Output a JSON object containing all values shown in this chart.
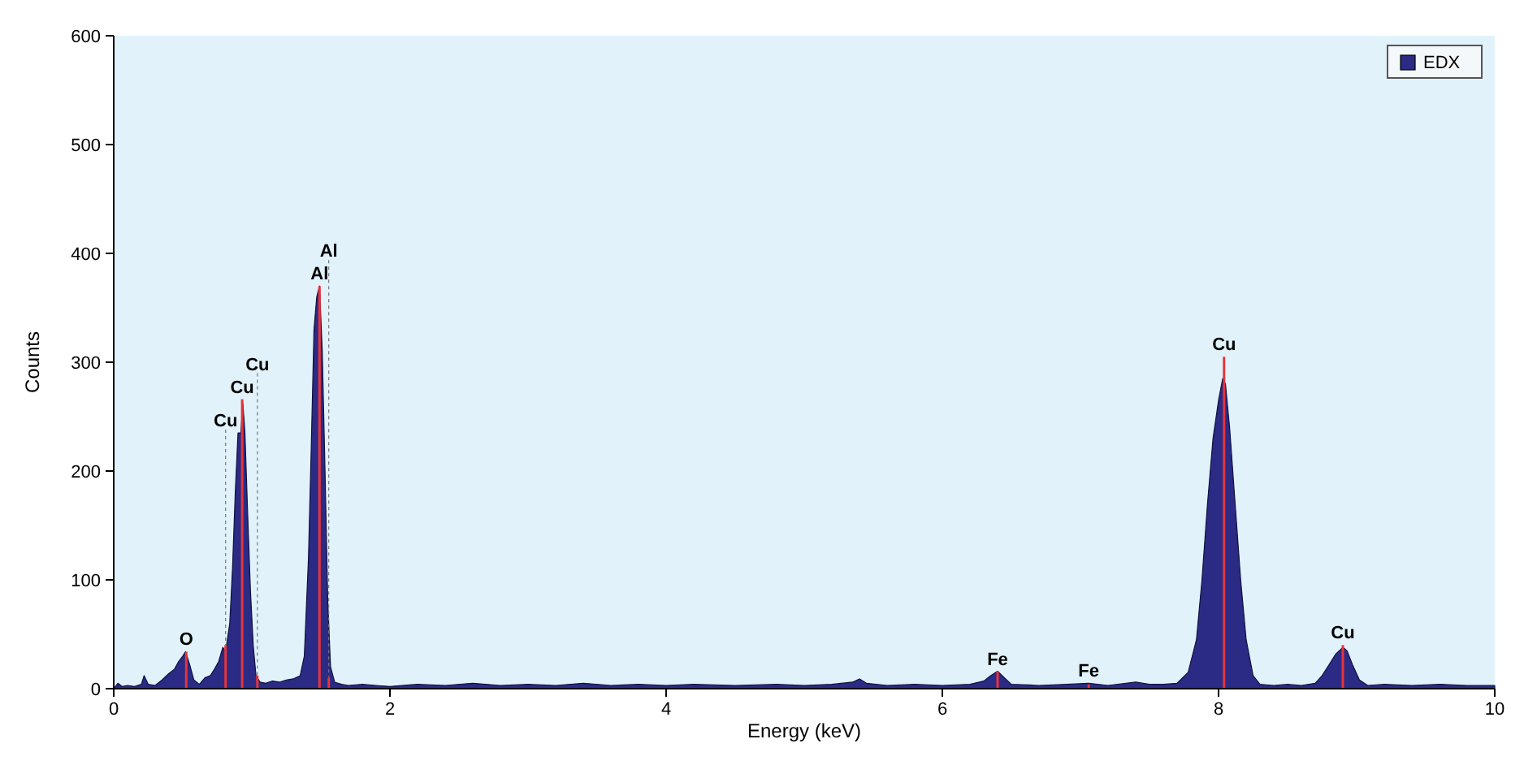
{
  "chart_data": {
    "type": "area",
    "xlabel": "Energy (keV)",
    "ylabel": "Counts",
    "xlim": [
      0,
      10
    ],
    "xticks": [
      0,
      2,
      4,
      6,
      8,
      10
    ],
    "ylim": [
      0,
      600
    ],
    "yticks": [
      0,
      100,
      200,
      300,
      400,
      500,
      600
    ],
    "grid": false,
    "legend": "top right",
    "series": [
      {
        "name": "EDX",
        "color": "#2b2b85",
        "x": [
          0,
          0.03,
          0.06,
          0.1,
          0.15,
          0.2,
          0.22,
          0.25,
          0.3,
          0.35,
          0.4,
          0.44,
          0.47,
          0.5,
          0.52,
          0.55,
          0.58,
          0.62,
          0.66,
          0.7,
          0.73,
          0.76,
          0.79,
          0.81,
          0.84,
          0.86,
          0.88,
          0.9,
          0.92,
          0.935,
          0.95,
          0.97,
          0.99,
          1.01,
          1.03,
          1.06,
          1.1,
          1.15,
          1.2,
          1.25,
          1.3,
          1.35,
          1.38,
          1.41,
          1.43,
          1.45,
          1.47,
          1.49,
          1.51,
          1.53,
          1.55,
          1.57,
          1.6,
          1.65,
          1.7,
          1.8,
          1.9,
          2.0,
          2.2,
          2.4,
          2.6,
          2.8,
          3.0,
          3.2,
          3.4,
          3.6,
          3.8,
          4.0,
          4.2,
          4.5,
          4.8,
          5.0,
          5.2,
          5.35,
          5.4,
          5.45,
          5.6,
          5.8,
          6.0,
          6.2,
          6.3,
          6.35,
          6.4,
          6.45,
          6.5,
          6.7,
          6.9,
          7.06,
          7.2,
          7.4,
          7.5,
          7.6,
          7.7,
          7.78,
          7.84,
          7.88,
          7.92,
          7.96,
          8.0,
          8.03,
          8.05,
          8.08,
          8.12,
          8.16,
          8.2,
          8.25,
          8.3,
          8.4,
          8.5,
          8.6,
          8.7,
          8.75,
          8.8,
          8.85,
          8.9,
          8.93,
          8.97,
          9.02,
          9.08,
          9.2,
          9.4,
          9.6,
          9.8,
          10
        ],
        "values": [
          0,
          5,
          2,
          3,
          2,
          4,
          12,
          4,
          3,
          8,
          14,
          18,
          25,
          30,
          34,
          22,
          8,
          4,
          10,
          12,
          18,
          25,
          38,
          34,
          60,
          110,
          180,
          235,
          235,
          262,
          235,
          160,
          90,
          40,
          12,
          6,
          5,
          7,
          6,
          8,
          9,
          12,
          30,
          120,
          220,
          330,
          360,
          370,
          310,
          200,
          80,
          20,
          6,
          4,
          3,
          4,
          3,
          2,
          4,
          3,
          5,
          3,
          4,
          3,
          5,
          3,
          4,
          3,
          4,
          3,
          4,
          3,
          4,
          6,
          9,
          5,
          3,
          4,
          3,
          4,
          7,
          12,
          16,
          10,
          4,
          3,
          4,
          5,
          3,
          6,
          4,
          4,
          5,
          15,
          45,
          100,
          170,
          230,
          265,
          285,
          280,
          240,
          170,
          100,
          45,
          12,
          4,
          3,
          4,
          3,
          5,
          12,
          22,
          32,
          38,
          35,
          22,
          8,
          3,
          4,
          3,
          4,
          3,
          3
        ]
      },
      {
        "type": "bar",
        "color": "#e8333a",
        "x": [
          0.525,
          0.81,
          0.93,
          1.04,
          1.49,
          1.557,
          6.4,
          7.06,
          8.04,
          8.9
        ],
        "values": [
          34,
          40,
          266,
          12,
          370,
          10,
          16,
          4,
          305,
          40
        ]
      }
    ],
    "annotations": [
      {
        "text": "O",
        "x": 0.525,
        "y": 34
      },
      {
        "text": "Cu",
        "x": 0.81,
        "y": 40
      },
      {
        "text": "Cu",
        "x": 0.93,
        "y": 266
      },
      {
        "text": "Cu",
        "x": 1.04,
        "y": 12
      },
      {
        "text": "Al",
        "x": 1.49,
        "y": 370
      },
      {
        "text": "Al",
        "x": 1.557,
        "y": 10
      },
      {
        "text": "Fe",
        "x": 6.4,
        "y": 16
      },
      {
        "text": "Fe",
        "x": 7.06,
        "y": 4
      },
      {
        "text": "Cu",
        "x": 8.04,
        "y": 305
      },
      {
        "text": "Cu",
        "x": 8.9,
        "y": 40
      }
    ]
  }
}
